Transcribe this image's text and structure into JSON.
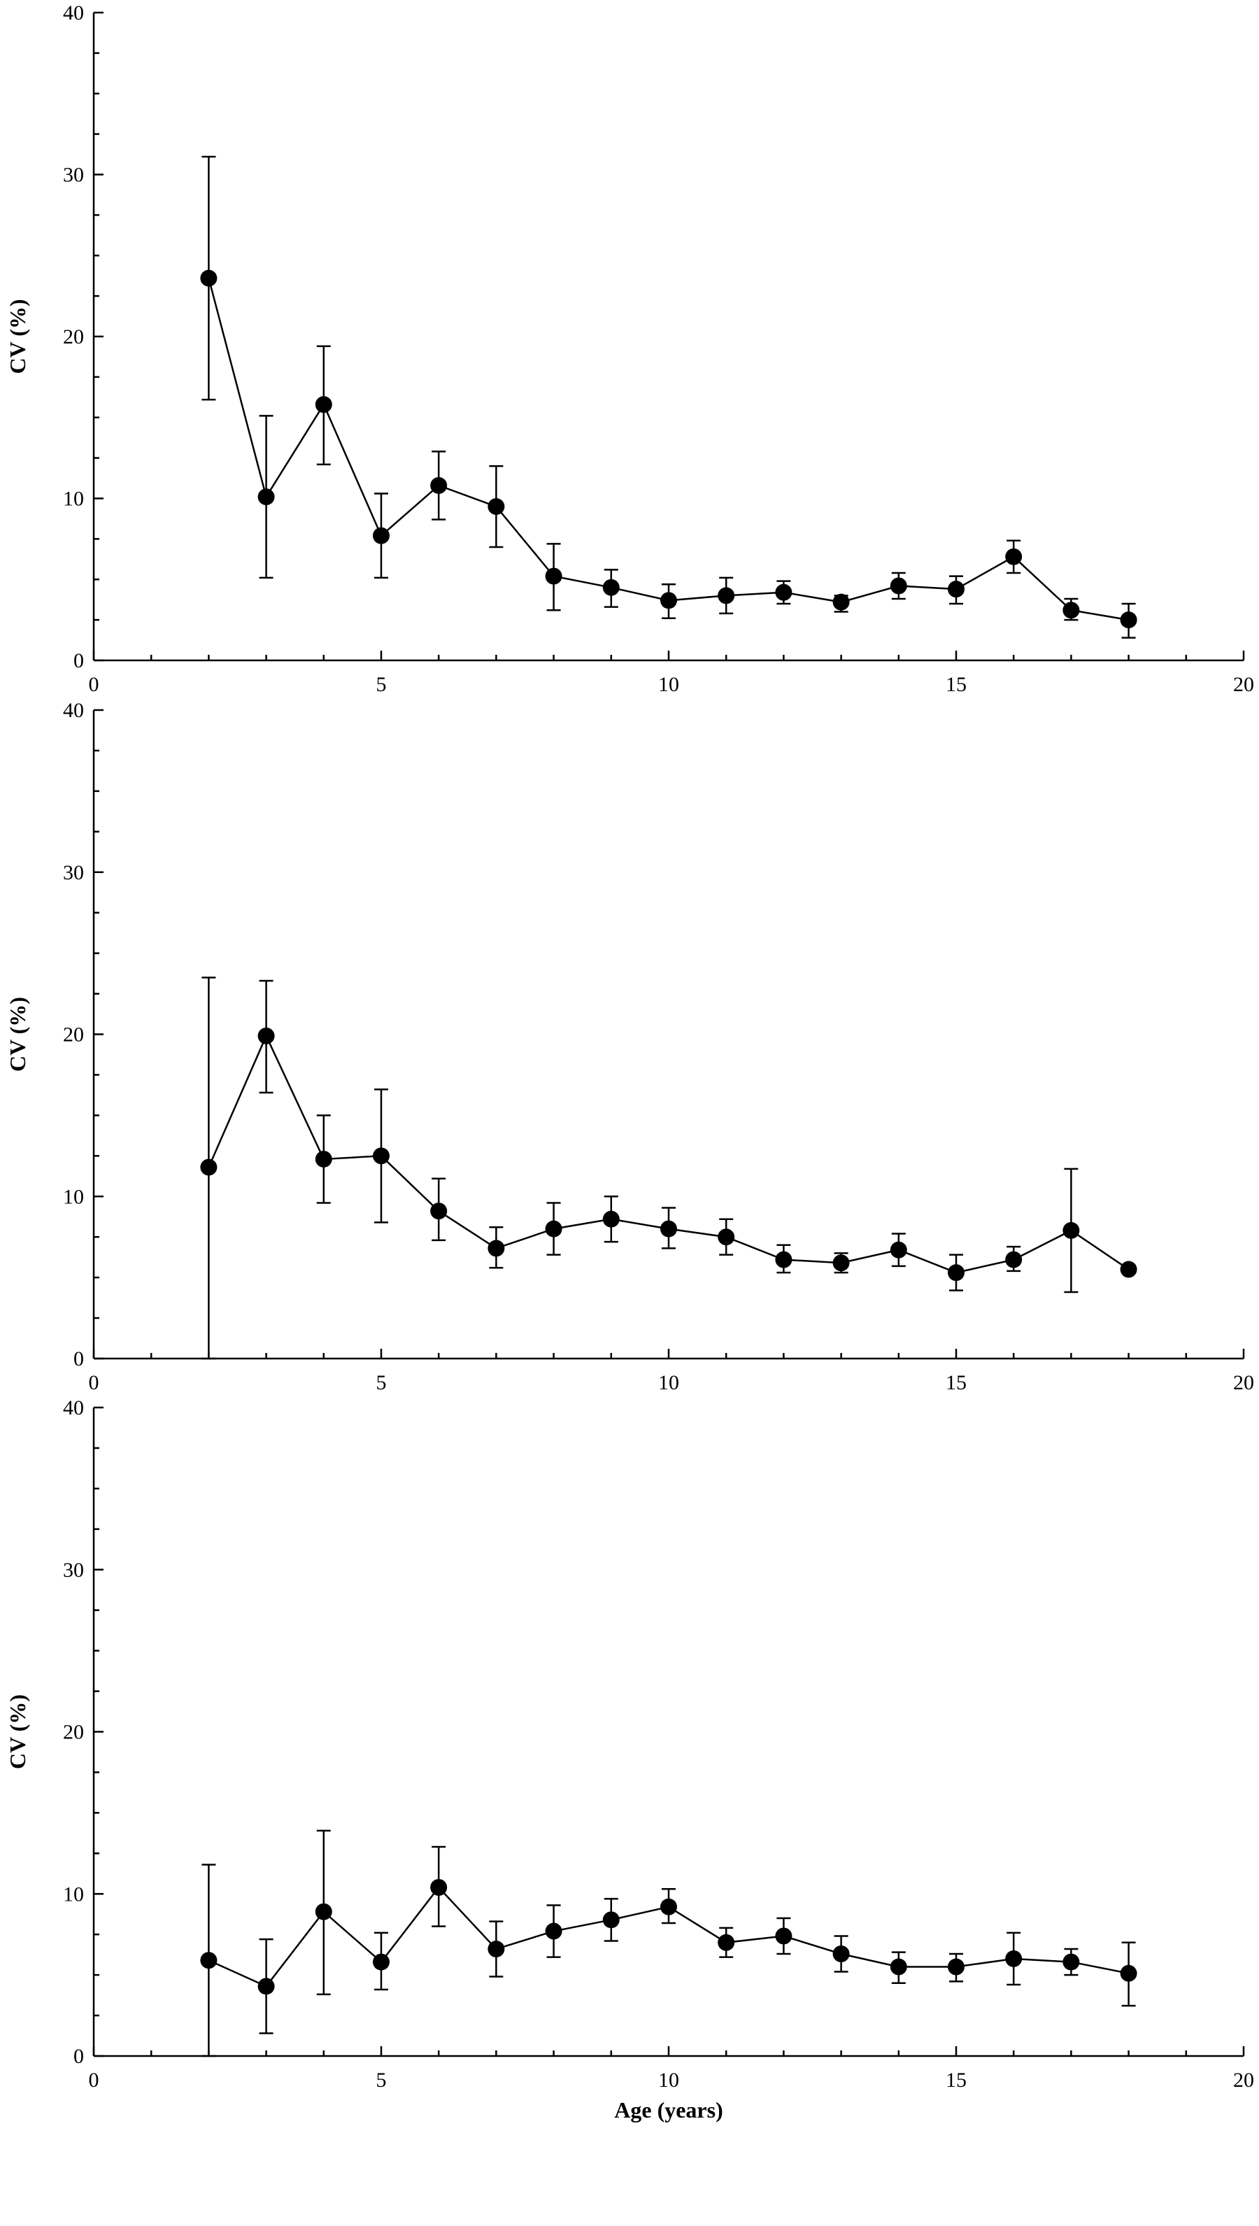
{
  "chart_data": [
    {
      "type": "line",
      "title": "",
      "xlabel": "",
      "ylabel": "CV (%)",
      "xlim": [
        0,
        20
      ],
      "ylim": [
        0,
        40
      ],
      "x_ticks": [
        0,
        5,
        10,
        15,
        20
      ],
      "y_ticks": [
        0,
        10,
        20,
        30,
        40
      ],
      "grid": false,
      "series": [
        {
          "x": [
            2,
            3,
            4,
            5,
            6,
            7,
            8,
            9,
            10,
            11,
            12,
            13,
            14,
            15,
            16,
            17,
            18
          ],
          "y": [
            23.6,
            10.1,
            15.8,
            7.7,
            10.8,
            9.5,
            5.2,
            4.5,
            3.7,
            4.0,
            4.2,
            3.6,
            4.6,
            4.4,
            6.4,
            3.1,
            2.5
          ],
          "err_low": [
            16.1,
            5.1,
            12.1,
            5.1,
            8.7,
            7.0,
            3.1,
            3.3,
            2.6,
            2.9,
            3.5,
            3.0,
            3.8,
            3.5,
            5.4,
            2.5,
            1.4
          ],
          "err_high": [
            31.1,
            15.1,
            19.4,
            10.3,
            12.9,
            12.0,
            7.2,
            5.6,
            4.7,
            5.1,
            4.9,
            4.0,
            5.4,
            5.2,
            7.4,
            3.8,
            3.5
          ]
        }
      ]
    },
    {
      "type": "line",
      "title": "",
      "xlabel": "",
      "ylabel": "CV (%)",
      "xlim": [
        0,
        20
      ],
      "ylim": [
        0,
        40
      ],
      "x_ticks": [
        0,
        5,
        10,
        15,
        20
      ],
      "y_ticks": [
        0,
        10,
        20,
        30,
        40
      ],
      "grid": false,
      "series": [
        {
          "x": [
            2,
            3,
            4,
            5,
            6,
            7,
            8,
            9,
            10,
            11,
            12,
            13,
            14,
            15,
            16,
            17,
            18
          ],
          "y": [
            11.8,
            19.9,
            12.3,
            12.5,
            9.1,
            6.8,
            8.0,
            8.6,
            8.0,
            7.5,
            6.1,
            5.9,
            6.7,
            5.3,
            6.1,
            7.9,
            5.5
          ],
          "err_low": [
            0,
            16.4,
            9.6,
            8.4,
            7.3,
            5.6,
            6.4,
            7.2,
            6.8,
            6.4,
            5.3,
            5.3,
            5.7,
            4.2,
            5.4,
            4.1,
            5.5
          ],
          "err_high": [
            23.5,
            23.3,
            15.0,
            16.6,
            11.1,
            8.1,
            9.6,
            10.0,
            9.3,
            8.6,
            7.0,
            6.5,
            7.7,
            6.4,
            6.9,
            11.7,
            5.5
          ]
        }
      ]
    },
    {
      "type": "line",
      "title": "",
      "xlabel": "Age (years)",
      "ylabel": "CV (%)",
      "xlim": [
        0,
        20
      ],
      "ylim": [
        0,
        40
      ],
      "x_ticks": [
        0,
        5,
        10,
        15,
        20
      ],
      "y_ticks": [
        0,
        10,
        20,
        30,
        40
      ],
      "grid": false,
      "series": [
        {
          "x": [
            2,
            3,
            4,
            5,
            6,
            7,
            8,
            9,
            10,
            11,
            12,
            13,
            14,
            15,
            16,
            17,
            18
          ],
          "y": [
            5.9,
            4.3,
            8.9,
            5.8,
            10.4,
            6.6,
            7.7,
            8.4,
            9.2,
            7.0,
            7.4,
            6.3,
            5.5,
            5.5,
            6.0,
            5.8,
            5.1
          ],
          "err_low": [
            0,
            1.4,
            3.8,
            4.1,
            8.0,
            4.9,
            6.1,
            7.1,
            8.2,
            6.1,
            6.3,
            5.2,
            4.5,
            4.6,
            4.4,
            5.0,
            3.1
          ],
          "err_high": [
            11.8,
            7.2,
            13.9,
            7.6,
            12.9,
            8.3,
            9.3,
            9.7,
            10.3,
            7.9,
            8.5,
            7.4,
            6.4,
            6.3,
            7.6,
            6.6,
            7.0
          ]
        }
      ]
    }
  ]
}
